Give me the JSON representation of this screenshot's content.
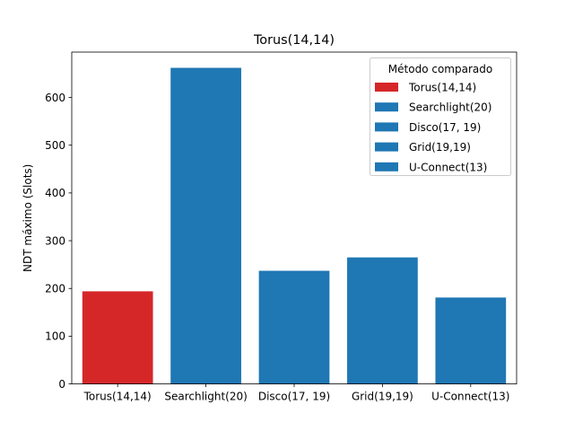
{
  "chart_data": {
    "type": "bar",
    "title": "Torus(14,14)",
    "xlabel": "",
    "ylabel": "NDT máximo (Slots)",
    "categories": [
      "Torus(14,14)",
      "Searchlight(20)",
      "Disco(17, 19)",
      "Grid(19,19)",
      "U-Connect(13)"
    ],
    "values": [
      194,
      662,
      237,
      265,
      181
    ],
    "bar_colors": [
      "#d62728",
      "#1f77b4",
      "#1f77b4",
      "#1f77b4",
      "#1f77b4"
    ],
    "ylim": [
      0,
      695
    ],
    "yticks": [
      0,
      100,
      200,
      300,
      400,
      500,
      600
    ],
    "grid": false,
    "legend": {
      "title": "Método comparado",
      "placement": "top-right",
      "entries": [
        {
          "label": "Torus(14,14)",
          "color": "#d62728"
        },
        {
          "label": "Searchlight(20)",
          "color": "#1f77b4"
        },
        {
          "label": "Disco(17, 19)",
          "color": "#1f77b4"
        },
        {
          "label": "Grid(19,19)",
          "color": "#1f77b4"
        },
        {
          "label": "U-Connect(13)",
          "color": "#1f77b4"
        }
      ]
    }
  }
}
